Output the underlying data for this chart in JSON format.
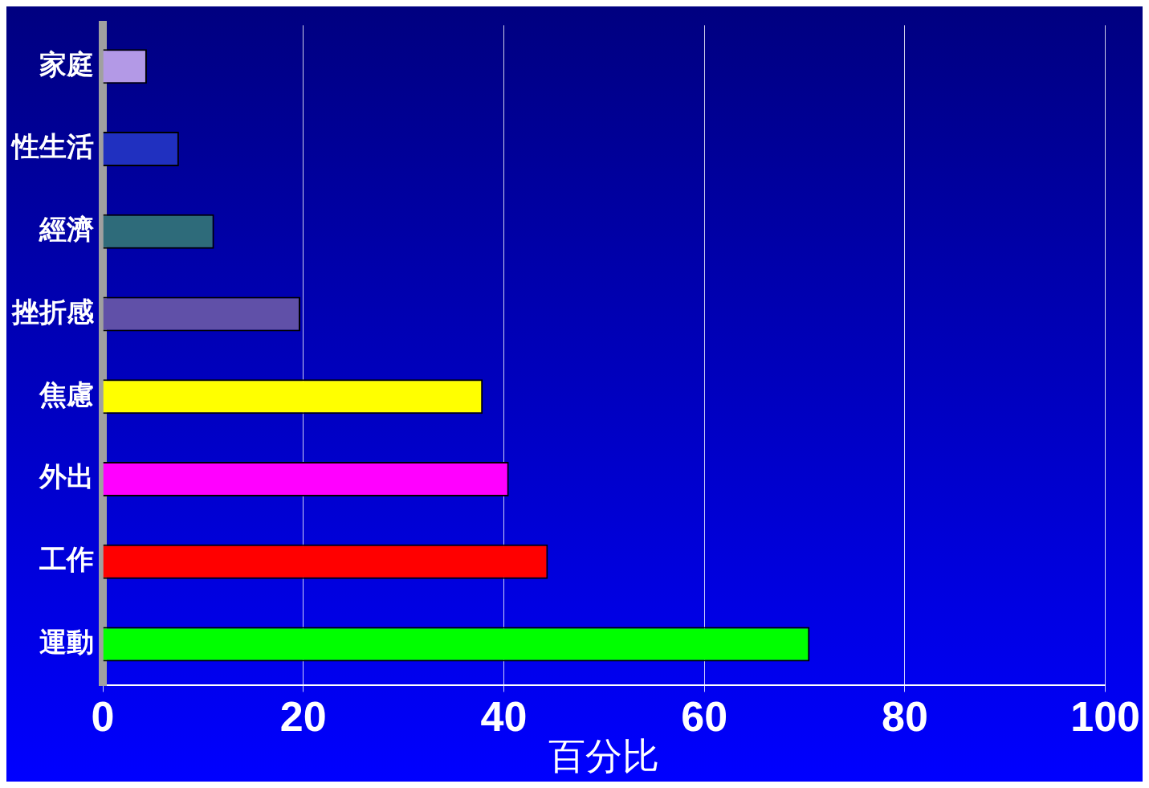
{
  "chart_data": {
    "type": "bar",
    "orientation": "horizontal",
    "xlabel": "百分比",
    "categories": [
      "家庭",
      "性生活",
      "經濟",
      "挫折感",
      "焦慮",
      "外出",
      "工作",
      "運動"
    ],
    "values": [
      4.4,
      7.6,
      11.1,
      19.7,
      37.9,
      40.5,
      44.4,
      70.5
    ],
    "colors": [
      "#b399e6",
      "#2030c0",
      "#2e6b7a",
      "#6050a8",
      "#ffff00",
      "#ff00ff",
      "#ff0000",
      "#00ff00"
    ],
    "xlim": [
      0,
      100
    ],
    "xticks": [
      0,
      20,
      40,
      60,
      80,
      100
    ],
    "grid": "x",
    "legend": false
  }
}
